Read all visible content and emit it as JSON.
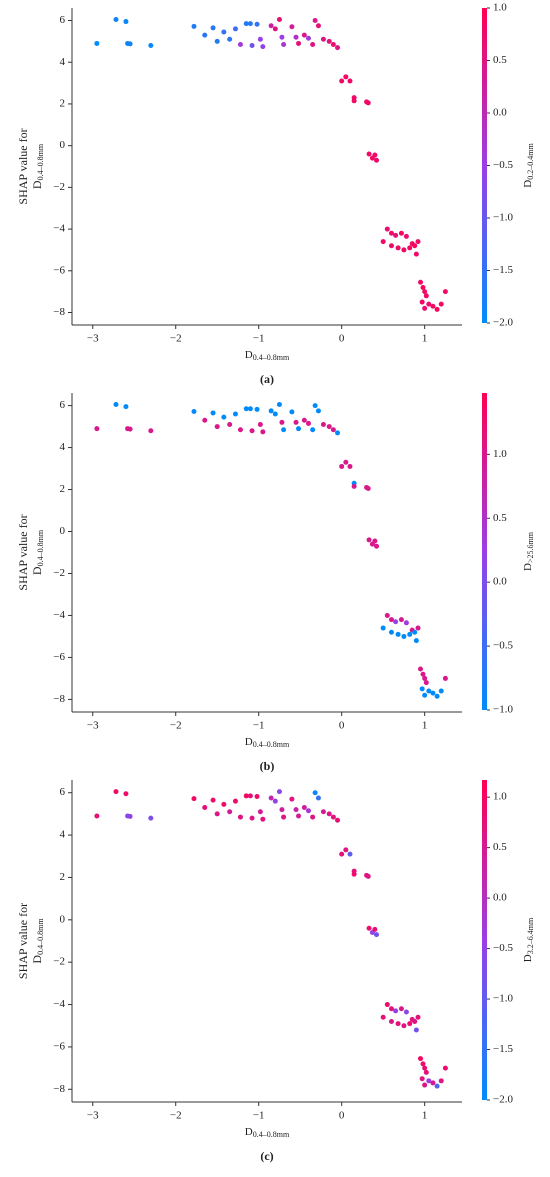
{
  "chart_data": [
    {
      "type": "scatter",
      "label": "(a)",
      "xlabel": {
        "text": "D",
        "sub": "0.4–0.8mm"
      },
      "ylabel": {
        "text": "SHAP value for",
        "var": "D",
        "sub": "0.4–0.8mm"
      },
      "colorbar_label": {
        "text": "D",
        "sub": "0.2–0.4mm"
      },
      "x": [
        -2.95,
        -2.72,
        -2.6,
        -2.58,
        -2.55,
        -2.3,
        -1.78,
        -1.65,
        -1.55,
        -1.5,
        -1.42,
        -1.35,
        -1.28,
        -1.22,
        -1.15,
        -1.1,
        -1.08,
        -1.02,
        -0.98,
        -0.95,
        -0.85,
        -0.8,
        -0.75,
        -0.72,
        -0.7,
        -0.6,
        -0.55,
        -0.52,
        -0.45,
        -0.4,
        -0.35,
        -0.32,
        -0.28,
        -0.22,
        -0.15,
        -0.1,
        -0.05,
        0.0,
        0.05,
        0.1,
        0.15,
        0.15,
        0.3,
        0.32,
        0.33,
        0.37,
        0.4,
        0.42,
        0.5,
        0.55,
        0.6,
        0.6,
        0.65,
        0.68,
        0.72,
        0.75,
        0.78,
        0.82,
        0.85,
        0.88,
        0.9,
        0.92,
        0.95,
        0.98,
        1.0,
        0.97,
        1.0,
        1.05,
        1.1,
        1.15,
        1.2,
        1.25,
        1.02
      ],
      "y": [
        4.9,
        6.05,
        5.95,
        4.9,
        4.88,
        4.8,
        5.72,
        5.3,
        5.65,
        5.0,
        5.45,
        5.1,
        5.6,
        4.85,
        5.85,
        5.85,
        4.8,
        5.82,
        5.1,
        4.75,
        5.75,
        5.6,
        6.05,
        5.2,
        4.85,
        5.7,
        5.2,
        4.9,
        5.3,
        5.15,
        4.85,
        6.0,
        5.75,
        5.1,
        5.0,
        4.85,
        4.7,
        3.1,
        3.3,
        3.1,
        2.3,
        2.15,
        2.1,
        2.05,
        -0.4,
        -0.6,
        -0.45,
        -0.7,
        -4.6,
        -4.0,
        -4.2,
        -4.8,
        -4.3,
        -4.9,
        -4.2,
        -5.0,
        -4.35,
        -4.9,
        -4.7,
        -4.8,
        -5.2,
        -4.6,
        -6.55,
        -6.8,
        -7.0,
        -7.5,
        -7.8,
        -7.6,
        -7.7,
        -7.85,
        -7.6,
        -7.0,
        -7.2
      ],
      "c": [
        -2,
        -1.9,
        -1.95,
        -1.9,
        -1.85,
        -1.9,
        -1.7,
        -1.6,
        -1.6,
        -1.7,
        -1.5,
        -1.6,
        -1.4,
        -0.3,
        -1.7,
        -1.6,
        -0.9,
        -1.5,
        -0.5,
        -0.6,
        0.2,
        0.5,
        0.7,
        -0.5,
        -0.3,
        0.3,
        -0.2,
        0.6,
        0.4,
        -0.4,
        0.5,
        0.4,
        0.6,
        0.5,
        0.6,
        0.7,
        0.5,
        0.8,
        0.8,
        0.8,
        0.8,
        0.8,
        0.8,
        0.8,
        0.8,
        0.8,
        0.8,
        0.8,
        0.8,
        0.7,
        0.8,
        0.8,
        0.6,
        0.8,
        0.9,
        0.8,
        0.7,
        0.8,
        0.8,
        0.9,
        0.8,
        0.8,
        0.8,
        0.9,
        0.8,
        0.8,
        0.7,
        0.8,
        0.8,
        0.9,
        0.8,
        0.8,
        0.8
      ],
      "cmap": [
        "#008bfb",
        "#9a3fe6",
        "#ff0052"
      ],
      "clim": [
        -2.0,
        1.0
      ],
      "cticks": [
        {
          "value": 1.0,
          "label": "1.0"
        },
        {
          "value": 0.5,
          "label": "0.5"
        },
        {
          "value": 0.0,
          "label": "0.0"
        },
        {
          "value": -0.5,
          "label": "−0.5"
        },
        {
          "value": -1.0,
          "label": "−1.0"
        },
        {
          "value": -1.5,
          "label": "−1.5"
        },
        {
          "value": -2.0,
          "label": "−2.0"
        }
      ],
      "xlim": [
        -3.25,
        1.45
      ],
      "ylim": [
        -8.6,
        6.6
      ],
      "xticks": [
        {
          "value": -3,
          "label": "−3"
        },
        {
          "value": -2,
          "label": "−2"
        },
        {
          "value": -1,
          "label": "−1"
        },
        0,
        1
      ],
      "yticks": [
        6,
        4,
        2,
        0,
        {
          "value": -2,
          "label": "−2"
        },
        {
          "value": -4,
          "label": "−4"
        },
        {
          "value": -6,
          "label": "−6"
        },
        {
          "value": -8,
          "label": "−8"
        }
      ]
    },
    {
      "type": "scatter",
      "label": "(b)",
      "xlabel": {
        "text": "D",
        "sub": "0.4–0.8mm"
      },
      "ylabel": {
        "text": "SHAP value for",
        "var": "D",
        "sub": "0.4–0.8mm"
      },
      "colorbar_label": {
        "text": "D",
        "sub": ">25.6mm"
      },
      "x": [
        -2.95,
        -2.72,
        -2.6,
        -2.58,
        -2.55,
        -2.3,
        -1.78,
        -1.65,
        -1.55,
        -1.5,
        -1.42,
        -1.35,
        -1.28,
        -1.22,
        -1.15,
        -1.1,
        -1.08,
        -1.02,
        -0.98,
        -0.95,
        -0.85,
        -0.8,
        -0.75,
        -0.72,
        -0.7,
        -0.6,
        -0.55,
        -0.52,
        -0.45,
        -0.4,
        -0.35,
        -0.32,
        -0.28,
        -0.22,
        -0.15,
        -0.1,
        -0.05,
        0.0,
        0.05,
        0.1,
        0.15,
        0.15,
        0.3,
        0.32,
        0.33,
        0.37,
        0.4,
        0.42,
        0.5,
        0.55,
        0.6,
        0.6,
        0.65,
        0.68,
        0.72,
        0.75,
        0.78,
        0.82,
        0.85,
        0.88,
        0.9,
        0.92,
        0.95,
        0.98,
        1.0,
        0.97,
        1.0,
        1.05,
        1.1,
        1.15,
        1.2,
        1.25,
        1.02
      ],
      "y": [
        4.9,
        6.05,
        5.95,
        4.9,
        4.88,
        4.8,
        5.72,
        5.3,
        5.65,
        5.0,
        5.45,
        5.1,
        5.6,
        4.85,
        5.85,
        5.85,
        4.8,
        5.82,
        5.1,
        4.75,
        5.75,
        5.6,
        6.05,
        5.2,
        4.85,
        5.7,
        5.2,
        4.9,
        5.3,
        5.15,
        4.85,
        6.0,
        5.75,
        5.1,
        5.0,
        4.85,
        4.7,
        3.1,
        3.3,
        3.1,
        2.3,
        2.15,
        2.1,
        2.05,
        -0.4,
        -0.6,
        -0.45,
        -0.7,
        -4.6,
        -4.0,
        -4.2,
        -4.8,
        -4.3,
        -4.9,
        -4.2,
        -5.0,
        -4.35,
        -4.9,
        -4.7,
        -4.8,
        -5.2,
        -4.6,
        -6.55,
        -6.8,
        -7.0,
        -7.5,
        -7.8,
        -7.6,
        -7.7,
        -7.85,
        -7.6,
        -7.0,
        -7.2
      ],
      "c": [
        1.0,
        -1.0,
        -1.0,
        1.0,
        1.0,
        1.0,
        -1.0,
        1.0,
        -1.0,
        1.0,
        -1.0,
        1.0,
        -1.0,
        1.0,
        -1.0,
        -1.0,
        1.0,
        -1.0,
        1.0,
        1.0,
        -1.0,
        -1.0,
        -1.0,
        1.0,
        -1.0,
        -1.0,
        1.0,
        -1.0,
        1.0,
        1.0,
        -1.0,
        -1.0,
        -1.0,
        1.0,
        1.0,
        1.0,
        -1.0,
        1.0,
        1.0,
        1.0,
        -1.0,
        1.0,
        1.0,
        1.0,
        1.0,
        1.0,
        1.0,
        1.0,
        -1.0,
        1.0,
        1.0,
        -1.0,
        0.2,
        -1.0,
        1.0,
        -1.0,
        0.3,
        -1.0,
        1.0,
        -1.0,
        -1.0,
        1.0,
        1.0,
        1.0,
        1.0,
        -1.0,
        -1.0,
        -1.0,
        -1.0,
        -1.0,
        -1.0,
        1.0,
        1.0
      ],
      "cmap": [
        "#008bfb",
        "#9a3fe6",
        "#ff0052"
      ],
      "clim": [
        -1.0,
        1.48
      ],
      "cticks": [
        {
          "value": 1.0,
          "label": "1.0"
        },
        {
          "value": 0.5,
          "label": "0.5"
        },
        {
          "value": 0.0,
          "label": "0.0"
        },
        {
          "value": -0.5,
          "label": "−0.5"
        },
        {
          "value": -1.0,
          "label": "−1.0"
        }
      ],
      "xlim": [
        -3.25,
        1.45
      ],
      "ylim": [
        -8.6,
        6.6
      ],
      "xticks": [
        {
          "value": -3,
          "label": "−3"
        },
        {
          "value": -2,
          "label": "−2"
        },
        {
          "value": -1,
          "label": "−1"
        },
        0,
        1
      ],
      "yticks": [
        6,
        4,
        2,
        0,
        {
          "value": -2,
          "label": "−2"
        },
        {
          "value": -4,
          "label": "−4"
        },
        {
          "value": -6,
          "label": "−6"
        },
        {
          "value": -8,
          "label": "−8"
        }
      ]
    },
    {
      "type": "scatter",
      "label": "(c)",
      "xlabel": {
        "text": "D",
        "sub": "0.4–0.8mm"
      },
      "ylabel": {
        "text": "SHAP value for",
        "var": "D",
        "sub": "0.4–0.8mm"
      },
      "colorbar_label": {
        "text": "D",
        "sub": "3.2–6.4mm"
      },
      "x": [
        -2.95,
        -2.72,
        -2.6,
        -2.58,
        -2.55,
        -2.3,
        -1.78,
        -1.65,
        -1.55,
        -1.5,
        -1.42,
        -1.35,
        -1.28,
        -1.22,
        -1.15,
        -1.1,
        -1.08,
        -1.02,
        -0.98,
        -0.95,
        -0.85,
        -0.8,
        -0.75,
        -0.72,
        -0.7,
        -0.6,
        -0.55,
        -0.52,
        -0.45,
        -0.4,
        -0.35,
        -0.32,
        -0.28,
        -0.22,
        -0.15,
        -0.1,
        -0.05,
        0.0,
        0.05,
        0.1,
        0.15,
        0.15,
        0.3,
        0.32,
        0.33,
        0.37,
        0.4,
        0.42,
        0.5,
        0.55,
        0.6,
        0.6,
        0.65,
        0.68,
        0.72,
        0.75,
        0.78,
        0.82,
        0.85,
        0.88,
        0.9,
        0.92,
        0.95,
        0.98,
        1.0,
        0.97,
        1.0,
        1.05,
        1.1,
        1.15,
        1.2,
        1.25,
        1.02
      ],
      "y": [
        4.9,
        6.05,
        5.95,
        4.9,
        4.88,
        4.8,
        5.72,
        5.3,
        5.65,
        5.0,
        5.45,
        5.1,
        5.6,
        4.85,
        5.85,
        5.85,
        4.8,
        5.82,
        5.1,
        4.75,
        5.75,
        5.6,
        6.05,
        5.2,
        4.85,
        5.7,
        5.2,
        4.9,
        5.3,
        5.15,
        4.85,
        6.0,
        5.75,
        5.1,
        5.0,
        4.85,
        4.7,
        3.1,
        3.3,
        3.1,
        2.3,
        2.15,
        2.1,
        2.05,
        -0.4,
        -0.6,
        -0.45,
        -0.7,
        -4.6,
        -4.0,
        -4.2,
        -4.8,
        -4.3,
        -4.9,
        -4.2,
        -5.0,
        -4.35,
        -4.9,
        -4.7,
        -4.8,
        -5.2,
        -4.6,
        -6.55,
        -6.8,
        -7.0,
        -7.5,
        -7.8,
        -7.6,
        -7.7,
        -7.85,
        -7.6,
        -7.0,
        -7.2
      ],
      "c": [
        0.8,
        1.0,
        0.9,
        -0.6,
        -0.5,
        -0.7,
        1.0,
        0.8,
        0.9,
        0.6,
        1.0,
        0.5,
        0.9,
        0.7,
        1.0,
        0.8,
        0.6,
        0.9,
        0.5,
        0.7,
        0.2,
        -0.5,
        -0.6,
        0.4,
        0.6,
        0.7,
        0.3,
        0.5,
        0.4,
        -0.2,
        0.6,
        -1.9,
        -1.5,
        0.5,
        0.6,
        0.7,
        0.8,
        0.8,
        0.7,
        -1.0,
        0.8,
        0.9,
        0.6,
        0.7,
        0.9,
        -0.5,
        0.8,
        -0.8,
        0.8,
        0.9,
        0.7,
        0.6,
        -0.5,
        0.8,
        0.6,
        0.7,
        -0.6,
        0.9,
        0.6,
        0.7,
        -0.8,
        0.8,
        1.0,
        0.9,
        0.8,
        0.7,
        0.6,
        -0.3,
        0.5,
        -1.2,
        0.6,
        0.9,
        0.8
      ],
      "cmap": [
        "#008bfb",
        "#9a3fe6",
        "#ff0052"
      ],
      "clim": [
        -2.0,
        1.17
      ],
      "cticks": [
        {
          "value": 1.0,
          "label": "1.0"
        },
        {
          "value": 0.5,
          "label": "0.5"
        },
        {
          "value": 0.0,
          "label": "0.0"
        },
        {
          "value": -0.5,
          "label": "−0.5"
        },
        {
          "value": -1.0,
          "label": "−1.0"
        },
        {
          "value": -1.5,
          "label": "−1.5"
        },
        {
          "value": -2.0,
          "label": "−2.0"
        }
      ],
      "xlim": [
        -3.25,
        1.45
      ],
      "ylim": [
        -8.6,
        6.6
      ],
      "xticks": [
        {
          "value": -3,
          "label": "−3"
        },
        {
          "value": -2,
          "label": "−2"
        },
        {
          "value": -1,
          "label": "−1"
        },
        0,
        1
      ],
      "yticks": [
        6,
        4,
        2,
        0,
        {
          "value": -2,
          "label": "−2"
        },
        {
          "value": -4,
          "label": "−4"
        },
        {
          "value": -6,
          "label": "−6"
        },
        {
          "value": -8,
          "label": "−8"
        }
      ]
    }
  ]
}
